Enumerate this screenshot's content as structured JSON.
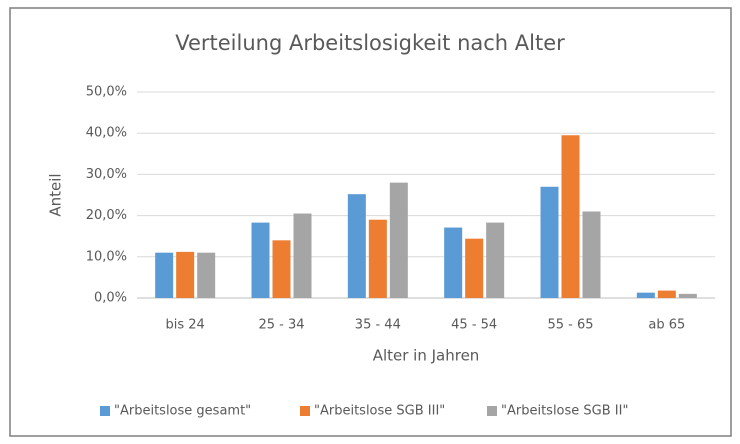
{
  "chart_data": {
    "type": "bar",
    "title": "Verteilung Arbeitslosigkeit nach Alter",
    "x_label": "Alter in Jahren",
    "y_label": "Anteil",
    "categories": [
      "bis 24",
      "25 - 34",
      "35 - 44",
      "45 - 54",
      "55 - 65",
      "ab 65"
    ],
    "series": [
      {
        "name": "\"Arbeitslose gesamt\"",
        "color": "#5b9bd5",
        "values": [
          11.0,
          18.3,
          25.2,
          17.1,
          27.0,
          1.3
        ]
      },
      {
        "name": "\"Arbeitslose SGB III\"",
        "color": "#ed7d31",
        "values": [
          11.2,
          14.0,
          19.0,
          14.4,
          39.5,
          1.8
        ]
      },
      {
        "name": "\"Arbeitslose SGB II\"",
        "color": "#a5a5a5",
        "values": [
          11.0,
          20.5,
          28.0,
          18.3,
          21.0,
          1.0
        ]
      }
    ],
    "ylim": [
      0,
      50
    ],
    "yticks": [
      {
        "value": 0,
        "label": "0,0%"
      },
      {
        "value": 10,
        "label": "10,0%"
      },
      {
        "value": 20,
        "label": "20,0%"
      },
      {
        "value": 30,
        "label": "30,0%"
      },
      {
        "value": 40,
        "label": "40,0%"
      },
      {
        "value": 50,
        "label": "50,0%"
      }
    ],
    "grid": true,
    "legend": "bottom"
  }
}
